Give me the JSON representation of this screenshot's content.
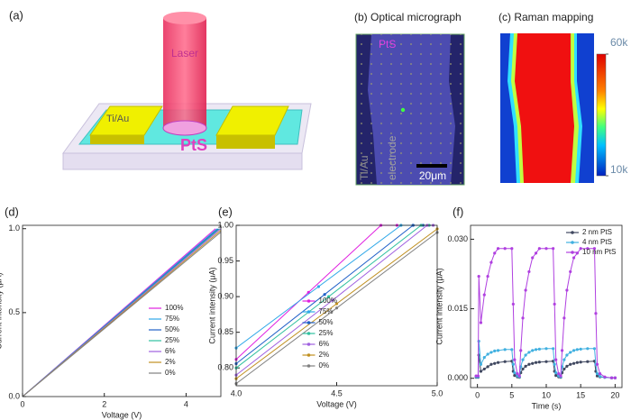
{
  "schematic": {
    "label": "(a)",
    "laser": "Laser",
    "electrode": "Ti/Au",
    "material": "PtS"
  },
  "micrograph": {
    "label": "(b) Optical micrograph",
    "material": "PtS",
    "electrode_metal": "Ti/Au",
    "electrode_word": "electrode",
    "scale": "20μm"
  },
  "raman": {
    "label": "(c) Raman mapping",
    "clim": [
      10000,
      60000
    ],
    "ticks": [
      {
        "value": 60000,
        "label": "60k"
      },
      {
        "value": 10000,
        "label": "10k"
      }
    ]
  },
  "chart_data": [
    {
      "type": "line",
      "label": "(d)",
      "xlabel": "Voltage (V)",
      "ylabel": "Current intensity (μA)",
      "xlim": [
        0,
        4.85
      ],
      "xticks": [
        0,
        2,
        4
      ],
      "ylim": [
        0,
        1.02
      ],
      "yticks": [
        {
          "value": 0,
          "label": "0.0"
        },
        0.5,
        {
          "value": 1,
          "label": "1.0"
        }
      ],
      "legend": "lower right",
      "markers": false,
      "series": [
        {
          "name": "100%",
          "color": "#e020e0",
          "x": [
            0,
            4.72
          ],
          "values": [
            0,
            1.0
          ]
        },
        {
          "name": "75%",
          "color": "#30a8e8",
          "x": [
            0,
            4.76
          ],
          "values": [
            0,
            1.0
          ]
        },
        {
          "name": "50%",
          "color": "#2060c8",
          "x": [
            0,
            4.79
          ],
          "values": [
            0,
            1.0
          ]
        },
        {
          "name": "25%",
          "color": "#30c0a0",
          "x": [
            0,
            4.82
          ],
          "values": [
            0,
            1.0
          ]
        },
        {
          "name": "6%",
          "color": "#a060e0",
          "x": [
            0,
            4.85
          ],
          "values": [
            0,
            1.0
          ]
        },
        {
          "name": "2%",
          "color": "#c09020",
          "x": [
            0,
            4.85
          ],
          "values": [
            0,
            0.99
          ]
        },
        {
          "name": "0%",
          "color": "#808080",
          "x": [
            0,
            4.85
          ],
          "values": [
            0,
            0.98
          ]
        }
      ]
    },
    {
      "type": "line",
      "label": "(e)",
      "xlabel": "Voltage (V)",
      "ylabel": "Current intensity (μA)",
      "xlim": [
        4.0,
        5.0
      ],
      "xticks": [
        {
          "value": 4,
          "label": "4.0"
        },
        4.5,
        {
          "value": 5,
          "label": "5.0"
        }
      ],
      "ylim": [
        0.775,
        1.0
      ],
      "yticks": [
        {
          "value": 0.8,
          "label": "0.80"
        },
        0.85,
        {
          "value": 0.9,
          "label": "0.90"
        },
        0.95,
        {
          "value": 1,
          "label": "1.00"
        }
      ],
      "legend": "lower center",
      "markers": true,
      "series": [
        {
          "name": "100%",
          "color": "#e020e0",
          "x": [
            4.0,
            4.36,
            4.72,
            4.8
          ],
          "values": [
            0.812,
            0.906,
            1.0,
            1.0
          ]
        },
        {
          "name": "75%",
          "color": "#30a8e8",
          "x": [
            4.0,
            4.41,
            4.82,
            4.88
          ],
          "values": [
            0.828,
            0.914,
            1.0,
            1.0
          ]
        },
        {
          "name": "50%",
          "color": "#2060c8",
          "x": [
            4.0,
            4.44,
            4.88,
            4.93
          ],
          "values": [
            0.806,
            0.903,
            1.0,
            1.0
          ]
        },
        {
          "name": "25%",
          "color": "#30c0a0",
          "x": [
            4.0,
            4.46,
            4.92,
            4.96
          ],
          "values": [
            0.8,
            0.9,
            1.0,
            1.0
          ]
        },
        {
          "name": "6%",
          "color": "#a060e0",
          "x": [
            4.0,
            4.48,
            4.95,
            4.98
          ],
          "values": [
            0.79,
            0.895,
            1.0,
            1.0
          ]
        },
        {
          "name": "2%",
          "color": "#c09020",
          "x": [
            4.0,
            4.5,
            5.0
          ],
          "values": [
            0.785,
            0.89,
            0.995
          ]
        },
        {
          "name": "0%",
          "color": "#808080",
          "x": [
            4.0,
            4.5,
            5.0
          ],
          "values": [
            0.778,
            0.884,
            0.99
          ]
        }
      ]
    },
    {
      "type": "line",
      "label": "(f)",
      "xlabel": "Time (s)",
      "ylabel": "Current intensity (μA)",
      "xlim": [
        -1,
        21
      ],
      "xticks": [
        0,
        5,
        10,
        15,
        20
      ],
      "ylim": [
        -0.002,
        0.033
      ],
      "yticks": [
        {
          "value": 0,
          "label": "0.000"
        },
        {
          "value": 0.015,
          "label": "0.015"
        },
        {
          "value": 0.03,
          "label": "0.030"
        }
      ],
      "legend": "upper right",
      "markers": true,
      "x": [
        -0.2,
        0.1,
        0.2,
        0.5,
        1,
        1.5,
        2,
        2.5,
        3,
        4,
        5,
        5.2,
        5.4,
        5.8,
        6.1,
        6.3,
        6.6,
        7,
        7.5,
        8,
        8.5,
        9,
        10,
        11,
        11.2,
        11.4,
        11.8,
        12.1,
        12.3,
        12.6,
        13,
        13.5,
        14,
        14.5,
        15,
        16,
        17,
        17.2,
        17.4,
        17.8,
        18.5,
        19.5,
        20
      ],
      "series": [
        {
          "name": "2 nm PtS",
          "color": "#404860",
          "values": [
            0.0002,
            0.0002,
            0.005,
            0.0015,
            0.002,
            0.0025,
            0.003,
            0.0032,
            0.0034,
            0.0036,
            0.0037,
            0.0015,
            0.0006,
            0.0003,
            0.0002,
            0.0012,
            0.002,
            0.0026,
            0.003,
            0.0032,
            0.0034,
            0.0035,
            0.0036,
            0.0037,
            0.0015,
            0.0006,
            0.0003,
            0.0002,
            0.0012,
            0.002,
            0.0026,
            0.003,
            0.0032,
            0.0034,
            0.0035,
            0.0036,
            0.0037,
            0.0015,
            0.0005,
            0.0003,
            0.0002,
            0.0001,
            0.0001
          ]
        },
        {
          "name": "4 nm PtS",
          "color": "#40b0e0",
          "values": [
            0.0003,
            0.0003,
            0.008,
            0.003,
            0.0045,
            0.0052,
            0.0056,
            0.0059,
            0.006,
            0.0062,
            0.0062,
            0.003,
            0.0012,
            0.0005,
            0.0003,
            0.0025,
            0.004,
            0.005,
            0.0056,
            0.006,
            0.0062,
            0.0063,
            0.0064,
            0.0064,
            0.003,
            0.0012,
            0.0005,
            0.0003,
            0.0025,
            0.004,
            0.005,
            0.0056,
            0.006,
            0.0062,
            0.0063,
            0.0064,
            0.0064,
            0.003,
            0.001,
            0.0004,
            0.0002,
            0.0001,
            0.0001
          ]
        },
        {
          "name": "10 nm PtS",
          "color": "#b040e0",
          "values": [
            0.0005,
            0.0005,
            0.022,
            0.012,
            0.018,
            0.022,
            0.025,
            0.027,
            0.028,
            0.028,
            0.028,
            0.016,
            0.004,
            0.001,
            0.0005,
            0.006,
            0.013,
            0.019,
            0.023,
            0.026,
            0.027,
            0.028,
            0.028,
            0.028,
            0.016,
            0.004,
            0.001,
            0.0005,
            0.006,
            0.013,
            0.019,
            0.023,
            0.026,
            0.027,
            0.028,
            0.028,
            0.028,
            0.014,
            0.003,
            0.001,
            0.0003,
            0.0001,
            0.0001
          ]
        }
      ]
    }
  ]
}
